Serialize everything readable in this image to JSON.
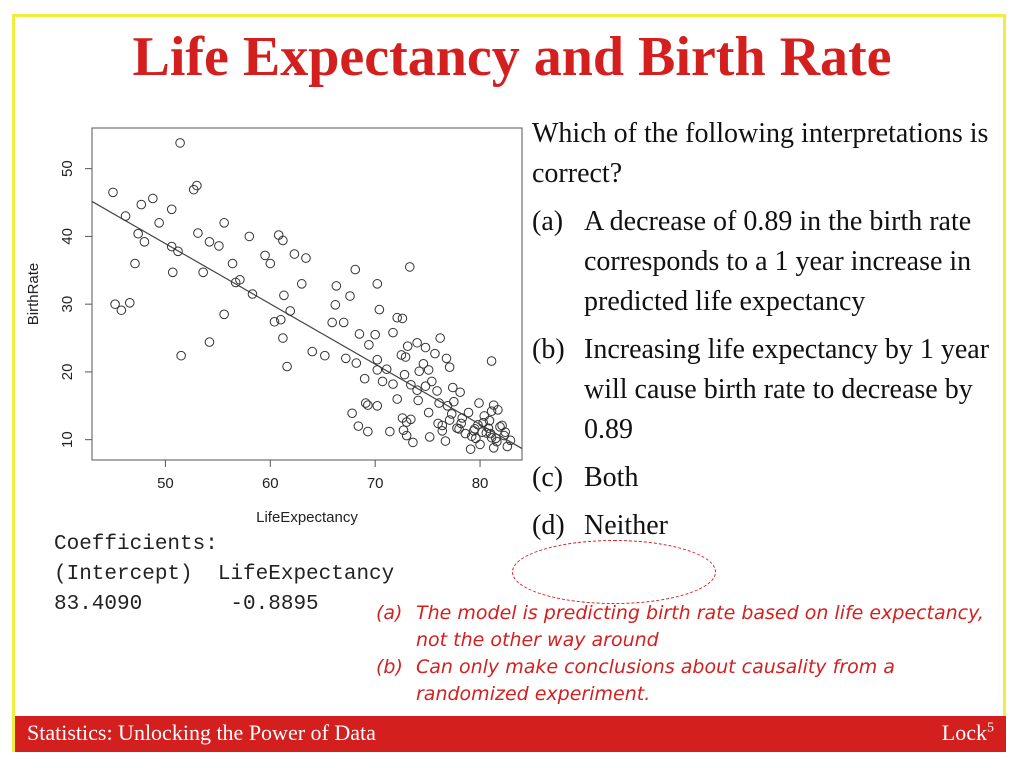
{
  "slide": {
    "title": "Life Expectancy and Birth Rate",
    "frame_color": "#f2ec3b",
    "accent_color": "#d41f1f"
  },
  "chart_data": {
    "type": "scatter",
    "xlabel": "LifeExpectancy",
    "ylabel": "BirthRate",
    "xlim": [
      43,
      84
    ],
    "ylim": [
      7,
      56
    ],
    "xticks": [
      50,
      60,
      70,
      80
    ],
    "yticks": [
      10,
      20,
      30,
      40,
      50
    ],
    "grid": false,
    "trendline": {
      "intercept": 83.409,
      "slope": -0.8895
    },
    "points": [
      [
        45.0,
        46.5
      ],
      [
        47.7,
        44.7
      ],
      [
        48.8,
        45.6
      ],
      [
        50.6,
        44.0
      ],
      [
        47.4,
        40.4
      ],
      [
        48.0,
        39.2
      ],
      [
        49.4,
        42.0
      ],
      [
        50.6,
        38.5
      ],
      [
        47.1,
        36.0
      ],
      [
        46.2,
        43.0
      ],
      [
        45.2,
        30.0
      ],
      [
        45.8,
        29.1
      ],
      [
        46.6,
        30.2
      ],
      [
        50.7,
        34.7
      ],
      [
        51.4,
        53.8
      ],
      [
        52.7,
        46.9
      ],
      [
        53.0,
        47.5
      ],
      [
        53.6,
        34.7
      ],
      [
        54.2,
        39.2
      ],
      [
        55.1,
        38.6
      ],
      [
        53.1,
        40.5
      ],
      [
        55.6,
        42.0
      ],
      [
        51.2,
        37.8
      ],
      [
        56.4,
        36.0
      ],
      [
        57.1,
        33.6
      ],
      [
        58.0,
        40.0
      ],
      [
        56.7,
        33.2
      ],
      [
        55.6,
        28.5
      ],
      [
        54.2,
        24.4
      ],
      [
        51.5,
        22.4
      ],
      [
        58.3,
        31.5
      ],
      [
        59.5,
        37.2
      ],
      [
        60.0,
        36.0
      ],
      [
        60.8,
        40.2
      ],
      [
        61.2,
        39.4
      ],
      [
        60.4,
        27.4
      ],
      [
        61.0,
        27.7
      ],
      [
        61.9,
        29.0
      ],
      [
        63.0,
        33.0
      ],
      [
        62.3,
        37.4
      ],
      [
        63.4,
        36.8
      ],
      [
        61.2,
        25.0
      ],
      [
        61.6,
        20.8
      ],
      [
        61.3,
        31.3
      ],
      [
        64.0,
        23.0
      ],
      [
        65.2,
        22.4
      ],
      [
        65.9,
        27.3
      ],
      [
        66.2,
        29.9
      ],
      [
        67.0,
        27.3
      ],
      [
        67.6,
        31.2
      ],
      [
        66.3,
        32.7
      ],
      [
        68.1,
        35.1
      ],
      [
        67.2,
        22.0
      ],
      [
        68.5,
        25.6
      ],
      [
        69.4,
        24.0
      ],
      [
        68.2,
        21.3
      ],
      [
        69.0,
        19.0
      ],
      [
        70.2,
        21.8
      ],
      [
        70.7,
        18.6
      ],
      [
        71.1,
        20.4
      ],
      [
        70.2,
        15.0
      ],
      [
        69.1,
        15.4
      ],
      [
        68.4,
        12.0
      ],
      [
        69.3,
        11.2
      ],
      [
        67.8,
        13.9
      ],
      [
        72.1,
        16.0
      ],
      [
        72.6,
        13.2
      ],
      [
        71.4,
        11.2
      ],
      [
        73.0,
        10.6
      ],
      [
        72.5,
        22.5
      ],
      [
        73.3,
        35.5
      ],
      [
        72.6,
        27.9
      ],
      [
        73.1,
        23.8
      ],
      [
        71.7,
        25.8
      ],
      [
        72.8,
        19.6
      ],
      [
        73.4,
        18.1
      ],
      [
        74.0,
        17.3
      ],
      [
        74.6,
        21.2
      ],
      [
        75.1,
        14.0
      ],
      [
        75.9,
        17.2
      ],
      [
        76.4,
        12.1
      ],
      [
        75.2,
        10.4
      ],
      [
        76.2,
        25.0
      ],
      [
        76.8,
        22.0
      ],
      [
        77.1,
        20.7
      ],
      [
        75.4,
        18.6
      ],
      [
        74.0,
        24.3
      ],
      [
        72.1,
        28.0
      ],
      [
        70.4,
        29.2
      ],
      [
        70.2,
        33.0
      ],
      [
        70.0,
        25.5
      ],
      [
        70.2,
        20.3
      ],
      [
        69.3,
        15.1
      ],
      [
        72.9,
        22.2
      ],
      [
        71.7,
        18.2
      ],
      [
        74.1,
        15.8
      ],
      [
        72.7,
        11.4
      ],
      [
        73.6,
        9.6
      ],
      [
        73.0,
        12.6
      ],
      [
        77.1,
        12.9
      ],
      [
        77.8,
        11.7
      ],
      [
        78.3,
        13.2
      ],
      [
        78.9,
        14.0
      ],
      [
        79.4,
        11.3
      ],
      [
        79.6,
        10.2
      ],
      [
        80.0,
        9.3
      ],
      [
        80.3,
        12.5
      ],
      [
        80.6,
        11.0
      ],
      [
        81.1,
        10.3
      ],
      [
        81.6,
        9.7
      ],
      [
        81.9,
        11.9
      ],
      [
        82.3,
        10.6
      ],
      [
        82.6,
        9.0
      ],
      [
        81.3,
        8.8
      ],
      [
        79.1,
        8.6
      ],
      [
        78.6,
        10.9
      ],
      [
        80.4,
        13.5
      ],
      [
        81.1,
        14.2
      ],
      [
        77.5,
        15.6
      ],
      [
        76.4,
        11.3
      ],
      [
        74.2,
        20.1
      ],
      [
        75.7,
        22.7
      ],
      [
        73.4,
        13.0
      ],
      [
        77.4,
        17.7
      ],
      [
        81.1,
        21.6
      ],
      [
        79.8,
        12.2
      ],
      [
        78.2,
        12.4
      ],
      [
        80.9,
        12.8
      ],
      [
        81.7,
        14.4
      ],
      [
        82.1,
        12.1
      ],
      [
        79.2,
        10.5
      ],
      [
        80.2,
        11.1
      ],
      [
        81.3,
        15.1
      ],
      [
        80.8,
        11.7
      ],
      [
        79.9,
        15.4
      ],
      [
        78.1,
        17.0
      ],
      [
        77.3,
        13.8
      ],
      [
        76.9,
        15.0
      ],
      [
        74.8,
        17.9
      ],
      [
        74.8,
        23.6
      ],
      [
        75.1,
        20.3
      ],
      [
        76.1,
        15.4
      ],
      [
        78.0,
        11.6
      ],
      [
        81.0,
        10.9
      ],
      [
        81.5,
        10.2
      ],
      [
        82.4,
        11.1
      ],
      [
        82.9,
        9.9
      ],
      [
        79.5,
        11.6
      ],
      [
        76.7,
        9.8
      ],
      [
        76.0,
        12.4
      ]
    ]
  },
  "coefficients": {
    "header": "Coefficients:",
    "row1": "(Intercept)  LifeExpectancy",
    "row2": "83.4090       -0.8895"
  },
  "question": {
    "prompt": "Which of the following interpretations is correct?",
    "options": [
      {
        "letter": "(a)",
        "text": "A decrease of 0.89 in the birth rate corresponds to a 1 year increase in predicted life expectancy"
      },
      {
        "letter": "(b)",
        "text": "Increasing life expectancy by 1 year will cause birth rate to decrease by 0.89"
      },
      {
        "letter": "(c)",
        "text": "Both"
      },
      {
        "letter": "(d)",
        "text": "Neither"
      }
    ]
  },
  "notes": [
    {
      "letter": "(a)",
      "text": "The model is predicting birth rate based on life expectancy, not the other way around"
    },
    {
      "letter": "(b)",
      "text": "Can only make conclusions about causality from a randomized experiment."
    }
  ],
  "footer": {
    "left": "Statistics: Unlocking the Power of Data",
    "right": "Lock",
    "right_sup": "5"
  }
}
